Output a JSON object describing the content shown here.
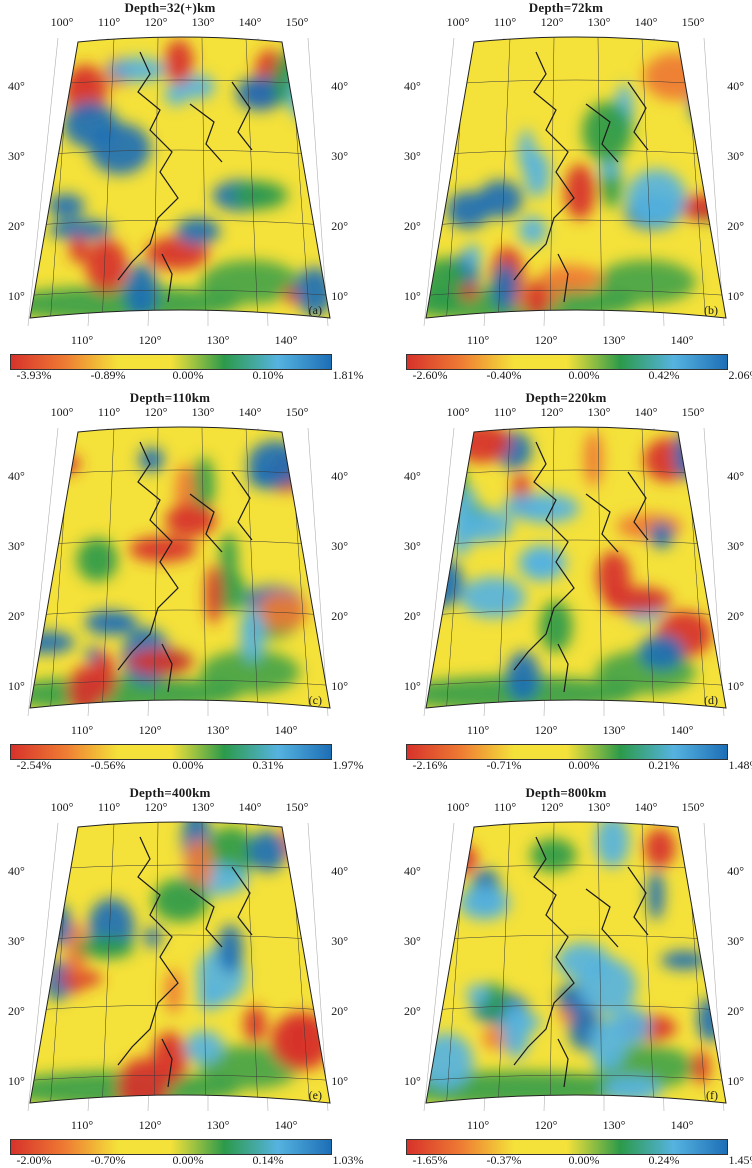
{
  "colorbar_colors": [
    "#d7322b",
    "#ee7a33",
    "#f4e13a",
    "#2c9a4a",
    "#56b3e0",
    "#1d6fb6"
  ],
  "lat_labels": [
    "40°",
    "30°",
    "20°",
    "10°"
  ],
  "top_lon_labels": [
    "100°",
    "110°",
    "120°",
    "130°",
    "140°",
    "150°"
  ],
  "bottom_lon_labels": [
    "110°",
    "120°",
    "130°",
    "140°"
  ],
  "panels": [
    {
      "id": "a",
      "title": "Depth=32(+)km",
      "letter": "(a)",
      "colorbar": [
        "-3.93%",
        "-0.89%",
        "0.00%",
        "0.10%",
        "1.81%"
      ]
    },
    {
      "id": "b",
      "title": "Depth=72km",
      "letter": "(b)",
      "colorbar": [
        "-2.60%",
        "-0.40%",
        "0.00%",
        "0.42%",
        "2.06%"
      ]
    },
    {
      "id": "c",
      "title": "Depth=110km",
      "letter": "(c)",
      "colorbar": [
        "-2.54%",
        "-0.56%",
        "0.00%",
        "0.31%",
        "1.97%"
      ]
    },
    {
      "id": "d",
      "title": "Depth=220km",
      "letter": "(d)",
      "colorbar": [
        "-2.16%",
        "-0.71%",
        "0.00%",
        "0.21%",
        "1.48%"
      ]
    },
    {
      "id": "e",
      "title": "Depth=400km",
      "letter": "(e)",
      "colorbar": [
        "-2.00%",
        "-0.70%",
        "0.00%",
        "0.14%",
        "1.03%"
      ]
    },
    {
      "id": "f",
      "title": "Depth=800km",
      "letter": "(f)",
      "colorbar": [
        "-1.65%",
        "-0.37%",
        "0.00%",
        "0.24%",
        "1.45%"
      ]
    }
  ]
}
